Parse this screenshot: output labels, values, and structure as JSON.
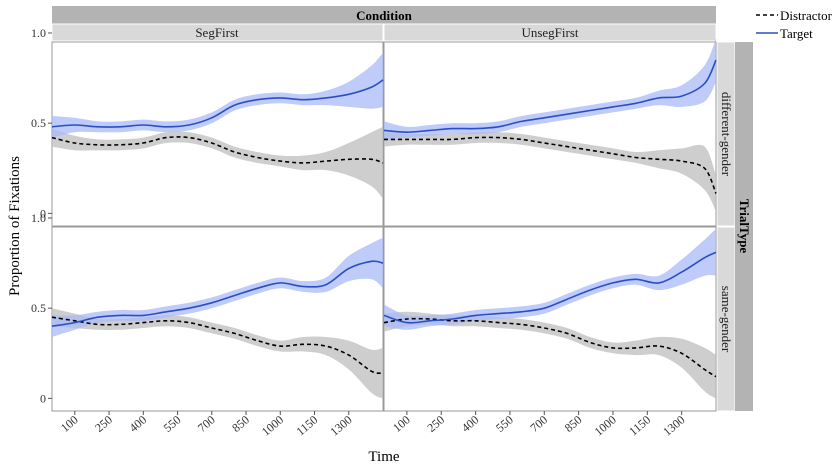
{
  "chart_data": {
    "type": "line",
    "facet_col_title": "Condition",
    "facet_row_title": "TrialType",
    "columns": [
      "SegFirst",
      "UnsegFirst"
    ],
    "rows": [
      "different-gender",
      "same-gender"
    ],
    "xlabel": "Time",
    "ylabel": "Proportion of Fixations",
    "xlim": [
      0,
      1450
    ],
    "ylim": [
      0,
      1.0
    ],
    "xticks": [
      100,
      250,
      400,
      550,
      700,
      850,
      1000,
      1150,
      1300
    ],
    "yticks": [
      {
        "value": 0,
        "label": "0"
      },
      {
        "value": 0.5,
        "label": "0.5"
      },
      {
        "value": 1.0,
        "label": "1.0"
      }
    ],
    "grid": false,
    "legend_position": "top-right",
    "series": [
      {
        "name": "Distractor",
        "color": "#000000",
        "dash": "4,3",
        "band_color": "#bdbdbd"
      },
      {
        "name": "Target",
        "color": "#2a4fc4",
        "dash": "",
        "band_color": "#a9b9f5"
      }
    ],
    "panels": [
      {
        "col": 0,
        "row": 0,
        "x": [
          0,
          100,
          200,
          300,
          400,
          500,
          600,
          700,
          800,
          900,
          1000,
          1100,
          1200,
          1300,
          1400,
          1450
        ],
        "Target": [
          0.48,
          0.49,
          0.48,
          0.48,
          0.49,
          0.48,
          0.49,
          0.53,
          0.6,
          0.63,
          0.64,
          0.63,
          0.64,
          0.66,
          0.7,
          0.74
        ],
        "Target_band": [
          0.06,
          0.04,
          0.03,
          0.03,
          0.03,
          0.03,
          0.03,
          0.03,
          0.03,
          0.03,
          0.03,
          0.03,
          0.04,
          0.07,
          0.12,
          0.15
        ],
        "Distractor": [
          0.42,
          0.39,
          0.38,
          0.38,
          0.39,
          0.42,
          0.42,
          0.39,
          0.34,
          0.31,
          0.29,
          0.28,
          0.29,
          0.3,
          0.3,
          0.28
        ],
        "Distractor_band": [
          0.05,
          0.04,
          0.03,
          0.03,
          0.03,
          0.03,
          0.03,
          0.03,
          0.03,
          0.03,
          0.03,
          0.04,
          0.05,
          0.09,
          0.15,
          0.2
        ]
      },
      {
        "col": 1,
        "row": 0,
        "x": [
          0,
          100,
          200,
          300,
          400,
          500,
          600,
          700,
          800,
          900,
          1000,
          1100,
          1200,
          1300,
          1400,
          1450
        ],
        "Target": [
          0.46,
          0.45,
          0.46,
          0.47,
          0.47,
          0.48,
          0.51,
          0.53,
          0.55,
          0.57,
          0.59,
          0.61,
          0.64,
          0.65,
          0.72,
          0.85
        ],
        "Target_band": [
          0.05,
          0.03,
          0.03,
          0.03,
          0.03,
          0.03,
          0.03,
          0.03,
          0.03,
          0.03,
          0.03,
          0.03,
          0.04,
          0.06,
          0.1,
          0.12
        ],
        "Distractor": [
          0.41,
          0.41,
          0.41,
          0.41,
          0.42,
          0.42,
          0.41,
          0.39,
          0.37,
          0.35,
          0.33,
          0.31,
          0.3,
          0.29,
          0.25,
          0.11
        ],
        "Distractor_band": [
          0.04,
          0.03,
          0.03,
          0.03,
          0.03,
          0.03,
          0.03,
          0.03,
          0.03,
          0.03,
          0.03,
          0.03,
          0.05,
          0.07,
          0.12,
          0.1
        ]
      },
      {
        "col": 0,
        "row": 1,
        "x": [
          0,
          100,
          200,
          300,
          400,
          500,
          600,
          700,
          800,
          900,
          1000,
          1100,
          1200,
          1300,
          1400,
          1450
        ],
        "Target": [
          0.4,
          0.42,
          0.45,
          0.46,
          0.46,
          0.48,
          0.5,
          0.53,
          0.57,
          0.61,
          0.64,
          0.62,
          0.63,
          0.72,
          0.76,
          0.75
        ],
        "Target_band": [
          0.06,
          0.04,
          0.03,
          0.03,
          0.03,
          0.03,
          0.03,
          0.03,
          0.03,
          0.03,
          0.03,
          0.03,
          0.04,
          0.07,
          0.1,
          0.14
        ],
        "Distractor": [
          0.45,
          0.43,
          0.41,
          0.41,
          0.42,
          0.43,
          0.42,
          0.39,
          0.36,
          0.32,
          0.29,
          0.3,
          0.29,
          0.24,
          0.15,
          0.14
        ],
        "Distractor_band": [
          0.05,
          0.04,
          0.03,
          0.03,
          0.03,
          0.03,
          0.03,
          0.03,
          0.03,
          0.03,
          0.03,
          0.04,
          0.05,
          0.08,
          0.12,
          0.14
        ]
      },
      {
        "col": 1,
        "row": 1,
        "x": [
          0,
          100,
          200,
          300,
          400,
          500,
          600,
          700,
          800,
          900,
          1000,
          1100,
          1200,
          1300,
          1400,
          1450
        ],
        "Target": [
          0.46,
          0.42,
          0.43,
          0.44,
          0.46,
          0.47,
          0.48,
          0.5,
          0.55,
          0.6,
          0.64,
          0.66,
          0.64,
          0.7,
          0.78,
          0.81
        ],
        "Target_band": [
          0.06,
          0.04,
          0.03,
          0.03,
          0.03,
          0.03,
          0.03,
          0.03,
          0.03,
          0.03,
          0.03,
          0.03,
          0.04,
          0.07,
          0.1,
          0.13
        ],
        "Distractor": [
          0.42,
          0.44,
          0.44,
          0.43,
          0.43,
          0.42,
          0.41,
          0.39,
          0.36,
          0.31,
          0.28,
          0.28,
          0.29,
          0.25,
          0.16,
          0.12
        ],
        "Distractor_band": [
          0.05,
          0.04,
          0.03,
          0.03,
          0.03,
          0.03,
          0.03,
          0.03,
          0.03,
          0.03,
          0.03,
          0.04,
          0.05,
          0.08,
          0.12,
          0.12
        ]
      }
    ]
  }
}
